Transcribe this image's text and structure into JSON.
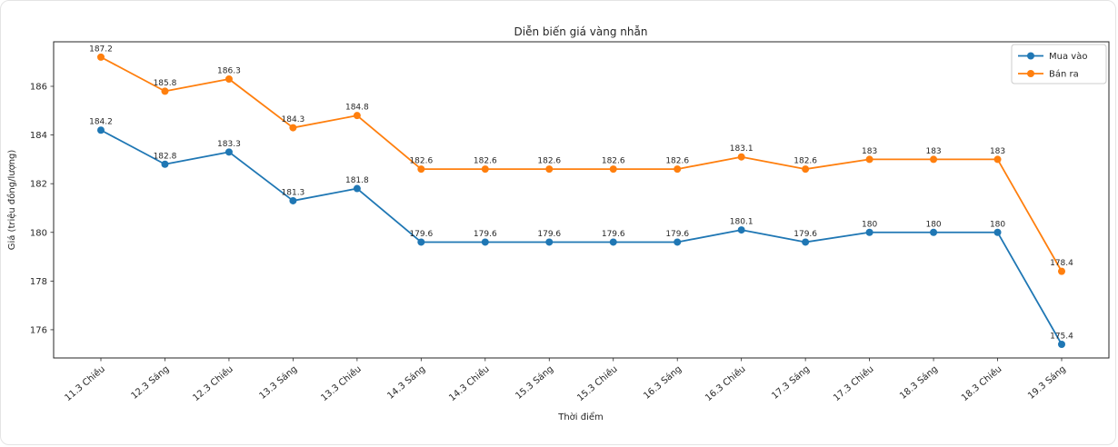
{
  "chart_data": {
    "type": "line",
    "title": "Diễn biến giá vàng nhẫn",
    "xlabel": "Thời điểm",
    "ylabel": "Giá (triệu đồng/lượng)",
    "categories": [
      "11.3 Chiều",
      "12.3 Sáng",
      "12.3 Chiều",
      "13.3 Sáng",
      "13.3 Chiều",
      "14.3 Sáng",
      "14.3 Chiều",
      "15.3 Sáng",
      "15.3 Chiều",
      "16.3 Sáng",
      "16.3 Chiều",
      "17.3 Sáng",
      "17.3 Chiều",
      "18.3 Sáng",
      "18.3 Chiều",
      "19.3 Sáng"
    ],
    "series": [
      {
        "name": "Mua vào",
        "color": "#1f77b4",
        "values": [
          184.2,
          182.8,
          183.3,
          181.3,
          181.8,
          179.6,
          179.6,
          179.6,
          179.6,
          179.6,
          180.1,
          179.6,
          180,
          180,
          180,
          175.4
        ]
      },
      {
        "name": "Bán ra",
        "color": "#ff7f0e",
        "values": [
          187.2,
          185.8,
          186.3,
          184.3,
          184.8,
          182.6,
          182.6,
          182.6,
          182.6,
          182.6,
          183.1,
          182.6,
          183,
          183,
          183,
          178.4
        ]
      }
    ],
    "yticks": [
      176,
      178,
      180,
      182,
      184,
      186
    ],
    "ylim": [
      174.84,
      187.83
    ],
    "legend_position": "top-right",
    "grid": false,
    "marker": "circle",
    "point_labels_visible": true,
    "axis_color": "#262626",
    "legend_border_color": "#cccccc"
  }
}
